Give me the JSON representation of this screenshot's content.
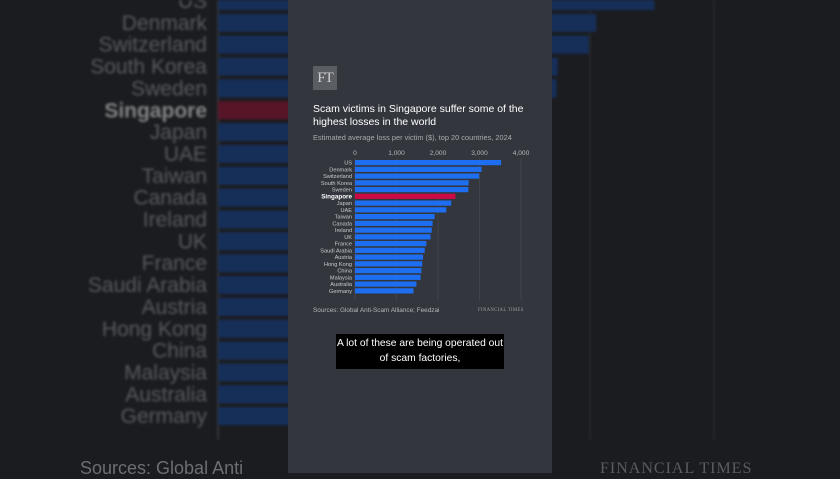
{
  "logo_text": "FT",
  "caption": "A lot of these are being operated out of scam factories,",
  "source": "Sources: Global Anti-Scam Alliance; Feedzai",
  "brand": "FINANCIAL TIMES",
  "background_source_fragment": "Sources: Global Anti",
  "colors": {
    "bar": "#1d6ef0",
    "highlight": "#cc0a45",
    "panel": "#33373d",
    "background": "#1b1c1f"
  },
  "chart_data": {
    "type": "bar",
    "orientation": "horizontal",
    "title": "Scam victims in Singapore suffer some of the highest losses in the world",
    "subtitle": "Estimated average loss per victim ($), top 20 countries, 2024",
    "categories": [
      "US",
      "Denmark",
      "Switzerland",
      "South Korea",
      "Sweden",
      "Singapore",
      "Japan",
      "UAE",
      "Taiwan",
      "Canada",
      "Ireland",
      "UK",
      "France",
      "Saudi Arabia",
      "Austria",
      "Hong Kong",
      "China",
      "Malaysia",
      "Australia",
      "Germany"
    ],
    "values": [
      3520,
      3050,
      2990,
      2740,
      2730,
      2420,
      2320,
      2200,
      1920,
      1870,
      1850,
      1820,
      1720,
      1680,
      1640,
      1620,
      1600,
      1580,
      1480,
      1410
    ],
    "highlight": "Singapore",
    "xticks": [
      0,
      1000,
      2000,
      3000,
      4000
    ],
    "xtick_labels": [
      "0",
      "1,000",
      "2,000",
      "3,000",
      "4,000"
    ],
    "xlim": [
      0,
      4000
    ]
  }
}
